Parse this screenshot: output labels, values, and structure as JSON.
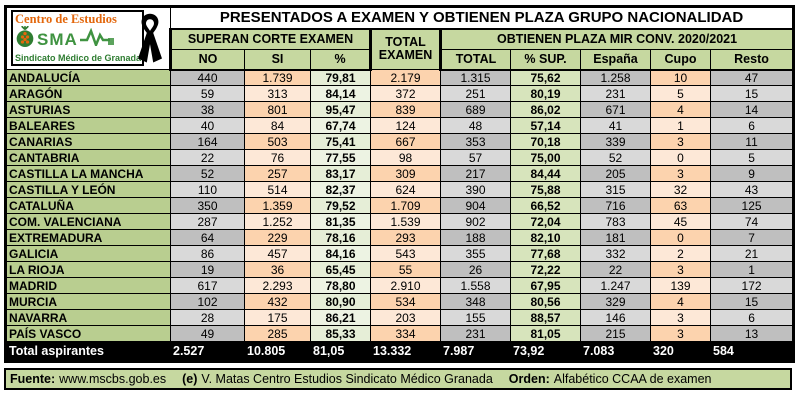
{
  "header": {
    "title": "PRESENTADOS A EXAMEN  Y OBTIENEN PLAZA GRUPO NACIONALIDAD",
    "group_superan": "SUPERAN CORTE EXAMEN",
    "total_examen_line1": "TOTAL",
    "total_examen_line2": "EXAMEN",
    "group_obtienen": "OBTIENEN  PLAZA MIR CONV. 2020/2021",
    "cols": {
      "no": "NO",
      "si": "SI",
      "pct": "%",
      "total": "TOTAL",
      "pct_sup": "% SUP.",
      "espana": "España",
      "cupo": "Cupo",
      "resto": "Resto"
    }
  },
  "logo": {
    "line1": "Centro de Estudios",
    "acronym": "SMA",
    "line2": "Sindicato Médico de Granada",
    "icons": [
      "pomegranate-icon",
      "ekg-line-icon",
      "mourning-ribbon-icon"
    ]
  },
  "colors": {
    "header_green": "#C6D8A0",
    "region_green": "#B9CE90",
    "pct_sup_green": "#D7E4BC",
    "gray_dark": "#BFBFBF",
    "gray_light": "#D9D9D9",
    "peach_dark": "#FCD3AE",
    "peach_light": "#FDE8D7",
    "logo_orange": "#E3670C",
    "logo_green": "#3F9341",
    "total_row_bg": "#000000"
  },
  "table": {
    "rows": [
      {
        "name": "ANDALUCÍA",
        "no": "440",
        "si": "1.739",
        "pct": "79,81",
        "total_examen": "2.179",
        "total": "1.315",
        "pct_sup": "75,62",
        "espana": "1.258",
        "cupo": "10",
        "resto": "47"
      },
      {
        "name": "ARAGÓN",
        "no": "59",
        "si": "313",
        "pct": "84,14",
        "total_examen": "372",
        "total": "251",
        "pct_sup": "80,19",
        "espana": "231",
        "cupo": "5",
        "resto": "15"
      },
      {
        "name": "ASTURIAS",
        "no": "38",
        "si": "801",
        "pct": "95,47",
        "total_examen": "839",
        "total": "689",
        "pct_sup": "86,02",
        "espana": "671",
        "cupo": "4",
        "resto": "14"
      },
      {
        "name": "BALEARES",
        "no": "40",
        "si": "84",
        "pct": "67,74",
        "total_examen": "124",
        "total": "48",
        "pct_sup": "57,14",
        "espana": "41",
        "cupo": "1",
        "resto": "6"
      },
      {
        "name": "CANARIAS",
        "no": "164",
        "si": "503",
        "pct": "75,41",
        "total_examen": "667",
        "total": "353",
        "pct_sup": "70,18",
        "espana": "339",
        "cupo": "3",
        "resto": "11"
      },
      {
        "name": "CANTABRIA",
        "no": "22",
        "si": "76",
        "pct": "77,55",
        "total_examen": "98",
        "total": "57",
        "pct_sup": "75,00",
        "espana": "52",
        "cupo": "0",
        "resto": "5"
      },
      {
        "name": "CASTILLA LA MANCHA",
        "no": "52",
        "si": "257",
        "pct": "83,17",
        "total_examen": "309",
        "total": "217",
        "pct_sup": "84,44",
        "espana": "205",
        "cupo": "3",
        "resto": "9"
      },
      {
        "name": "CASTILLA Y LEÓN",
        "no": "110",
        "si": "514",
        "pct": "82,37",
        "total_examen": "624",
        "total": "390",
        "pct_sup": "75,88",
        "espana": "315",
        "cupo": "32",
        "resto": "43"
      },
      {
        "name": "CATALUÑA",
        "no": "350",
        "si": "1.359",
        "pct": "79,52",
        "total_examen": "1.709",
        "total": "904",
        "pct_sup": "66,52",
        "espana": "716",
        "cupo": "63",
        "resto": "125"
      },
      {
        "name": "COM. VALENCIANA",
        "no": "287",
        "si": "1.252",
        "pct": "81,35",
        "total_examen": "1.539",
        "total": "902",
        "pct_sup": "72,04",
        "espana": "783",
        "cupo": "45",
        "resto": "74"
      },
      {
        "name": "EXTREMADURA",
        "no": "64",
        "si": "229",
        "pct": "78,16",
        "total_examen": "293",
        "total": "188",
        "pct_sup": "82,10",
        "espana": "181",
        "cupo": "0",
        "resto": "7"
      },
      {
        "name": "GALICIA",
        "no": "86",
        "si": "457",
        "pct": "84,16",
        "total_examen": "543",
        "total": "355",
        "pct_sup": "77,68",
        "espana": "332",
        "cupo": "2",
        "resto": "21"
      },
      {
        "name": "LA RIOJA",
        "no": "19",
        "si": "36",
        "pct": "65,45",
        "total_examen": "55",
        "total": "26",
        "pct_sup": "72,22",
        "espana": "22",
        "cupo": "3",
        "resto": "1"
      },
      {
        "name": "MADRID",
        "no": "617",
        "si": "2.293",
        "pct": "78,80",
        "total_examen": "2.910",
        "total": "1.558",
        "pct_sup": "67,95",
        "espana": "1.247",
        "cupo": "139",
        "resto": "172"
      },
      {
        "name": "MURCIA",
        "no": "102",
        "si": "432",
        "pct": "80,90",
        "total_examen": "534",
        "total": "348",
        "pct_sup": "80,56",
        "espana": "329",
        "cupo": "4",
        "resto": "15"
      },
      {
        "name": "NAVARRA",
        "no": "28",
        "si": "175",
        "pct": "86,21",
        "total_examen": "203",
        "total": "155",
        "pct_sup": "88,57",
        "espana": "146",
        "cupo": "3",
        "resto": "6"
      },
      {
        "name": "PAÍS VASCO",
        "no": "49",
        "si": "285",
        "pct": "85,33",
        "total_examen": "334",
        "total": "231",
        "pct_sup": "81,05",
        "espana": "215",
        "cupo": "3",
        "resto": "13"
      }
    ],
    "total_row": {
      "name": "Total aspirantes",
      "no": "2.527",
      "si": "10.805",
      "pct": "81,05",
      "total_examen": "13.332",
      "total": "7.987",
      "pct_sup": "73,92",
      "espana": "7.083",
      "cupo": "320",
      "resto": "584"
    }
  },
  "footer": {
    "fuente_label": "Fuente:",
    "fuente_value": "www.mscbs.gob.es",
    "credit_bold": "(e)",
    "credit": "V. Matas Centro Estudios Sindicato Médico Granada",
    "orden_label": "Orden:",
    "orden_value": "Alfabético CCAA de examen"
  }
}
